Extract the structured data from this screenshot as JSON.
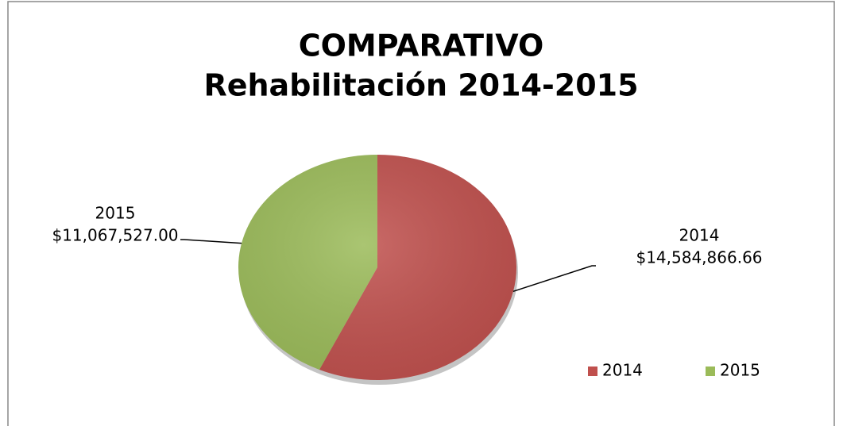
{
  "chart_data": {
    "type": "pie",
    "title": "COMPARATIVO",
    "subtitle": "Rehabilitación 2014-2015",
    "categories": [
      "2014",
      "2015"
    ],
    "values": [
      14584866.66,
      11067527.0
    ],
    "value_labels": [
      "$14,584,866.66",
      "$11,067,527.00"
    ],
    "colors": [
      "#c0504d",
      "#9bbb59"
    ],
    "legend": "bottom-right"
  }
}
